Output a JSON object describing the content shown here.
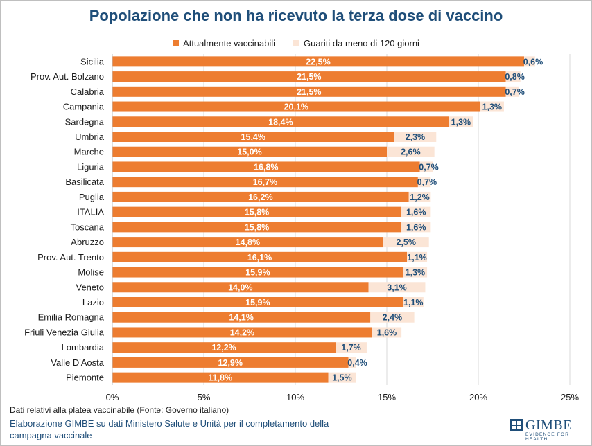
{
  "chart_data": {
    "type": "bar",
    "orientation": "horizontal",
    "stacked": true,
    "title": "Popolazione che non ha ricevuto la terza dose di vaccino",
    "categories": [
      "Sicilia",
      "Prov. Aut. Bolzano",
      "Calabria",
      "Campania",
      "Sardegna",
      "Umbria",
      "Marche",
      "Liguria",
      "Basilicata",
      "Puglia",
      "ITALIA",
      "Toscana",
      "Abruzzo",
      "Prov. Aut. Trento",
      "Molise",
      "Veneto",
      "Lazio",
      "Emilia Romagna",
      "Friuli Venezia Giulia",
      "Lombardia",
      "Valle D'Aosta",
      "Piemonte"
    ],
    "series": [
      {
        "name": "Attualmente vaccinabili",
        "color": "#ed7d31",
        "values": [
          22.5,
          21.5,
          21.5,
          20.1,
          18.4,
          15.4,
          15.0,
          16.8,
          16.7,
          16.2,
          15.8,
          15.8,
          14.8,
          16.1,
          15.9,
          14.0,
          15.9,
          14.1,
          14.2,
          12.2,
          12.9,
          11.8
        ],
        "labels": [
          "22,5%",
          "21,5%",
          "21,5%",
          "20,1%",
          "18,4%",
          "15,4%",
          "15,0%",
          "16,8%",
          "16,7%",
          "16,2%",
          "15,8%",
          "15,8%",
          "14,8%",
          "16,1%",
          "15,9%",
          "14,0%",
          "15,9%",
          "14,1%",
          "14,2%",
          "12,2%",
          "12,9%",
          "11,8%"
        ]
      },
      {
        "name": "Guariti da meno di 120 giorni",
        "color": "#fbe5d6",
        "values": [
          0.6,
          0.8,
          0.7,
          1.3,
          1.3,
          2.3,
          2.6,
          0.7,
          0.7,
          1.2,
          1.6,
          1.6,
          2.5,
          1.1,
          1.3,
          3.1,
          1.1,
          2.4,
          1.6,
          1.7,
          0.4,
          1.5
        ],
        "labels": [
          "0,6%",
          "0,8%",
          "0,7%",
          "1,3%",
          "1,3%",
          "2,3%",
          "2,6%",
          "0,7%",
          "0,7%",
          "1,2%",
          "1,6%",
          "1,6%",
          "2,5%",
          "1,1%",
          "1,3%",
          "3,1%",
          "1,1%",
          "2,4%",
          "1,6%",
          "1,7%",
          "0,4%",
          "1,5%"
        ]
      }
    ],
    "xlim": [
      0,
      25
    ],
    "xticks": [
      0,
      5,
      10,
      15,
      20,
      25
    ],
    "xtick_labels": [
      "0%",
      "5%",
      "10%",
      "15%",
      "20%",
      "25%"
    ],
    "grid": true,
    "legend_position": "top"
  },
  "footer": {
    "note": "Dati relativi alla platea vaccinabile (Fonte: Governo italiano)",
    "credit": "Elaborazione GIMBE su dati Ministero Salute e Unità per il completamento della campagna vaccinale"
  },
  "logo": {
    "name": "GIMBE",
    "tagline": "EVIDENCE FOR HEALTH"
  },
  "colors": {
    "title": "#1f4e79",
    "bar_primary": "#ed7d31",
    "bar_secondary": "#fbe5d6",
    "secondary_label": "#1f4e79"
  }
}
